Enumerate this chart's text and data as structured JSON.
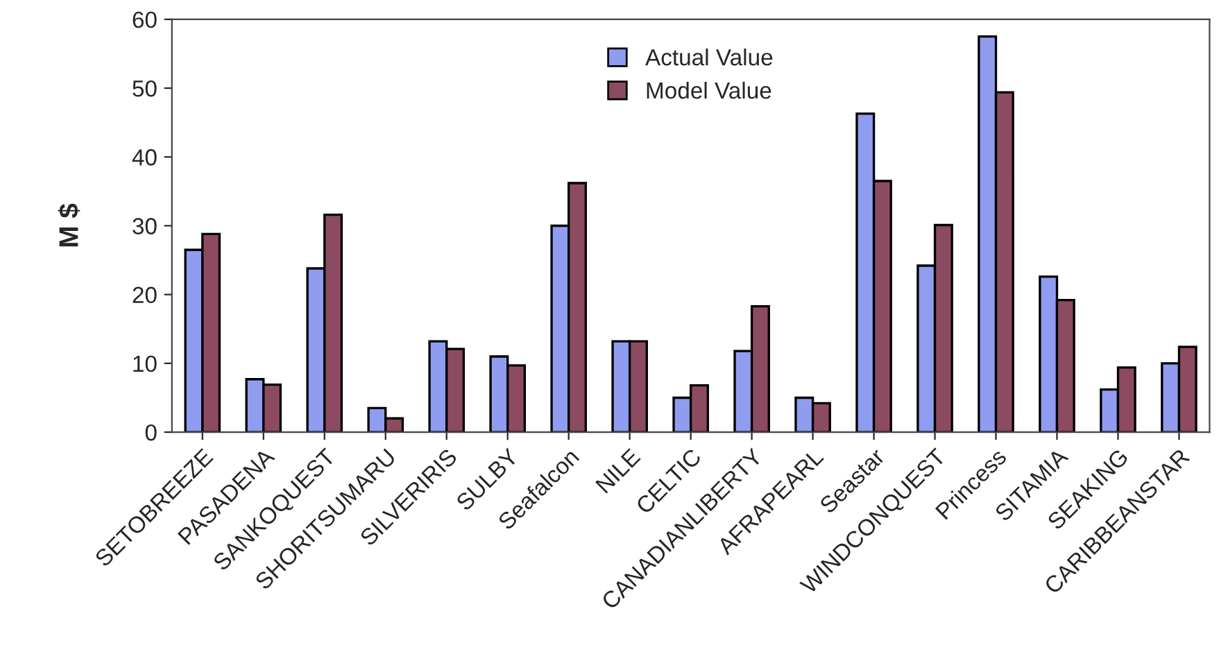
{
  "chart_data": {
    "type": "bar",
    "ylabel": "M $",
    "categories": [
      "SETOBREEZE",
      "PASADENA",
      "SANKOQUEST",
      "SHORITSUMARU",
      "SILVERIRIS",
      "SULBY",
      "Seafalcon",
      "NILE",
      "CELTIC",
      "CANADIANLIBERTY",
      "AFRAPEARL",
      "Seastar",
      "WINDCONQUEST",
      "Princess",
      "SITAMIA",
      "SEAKING",
      "CARIBBEANSTAR"
    ],
    "series": [
      {
        "name": "Actual Value",
        "color": "#8f9cf0",
        "values": [
          26.5,
          7.7,
          23.8,
          3.5,
          13.2,
          11,
          30,
          13.2,
          5,
          11.8,
          5,
          46.3,
          24.2,
          57.5,
          22.6,
          6.2,
          10
        ]
      },
      {
        "name": "Model Value",
        "color": "#8c4b60",
        "values": [
          28.8,
          6.9,
          31.6,
          2,
          12.1,
          9.7,
          36.2,
          13.2,
          6.8,
          18.3,
          4.2,
          36.5,
          30.1,
          49.4,
          19.2,
          9.4,
          12.4
        ]
      }
    ],
    "ylim": [
      0,
      60
    ],
    "yticks": [
      0,
      10,
      20,
      30,
      40,
      50,
      60
    ],
    "grid": false,
    "legend": "top"
  }
}
